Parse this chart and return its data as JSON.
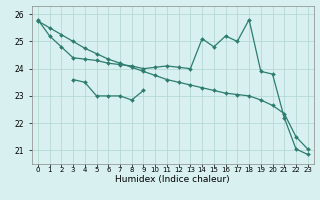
{
  "x_main": [
    0,
    1,
    2,
    3,
    4,
    5,
    6,
    7,
    8,
    9,
    10,
    11,
    12,
    13,
    14,
    15,
    16,
    17,
    18,
    19,
    20,
    21,
    22,
    23
  ],
  "y_zigzag": [
    25.8,
    25.2,
    24.8,
    24.4,
    24.35,
    24.3,
    24.2,
    24.15,
    24.1,
    24.0,
    24.05,
    24.1,
    24.05,
    24.0,
    25.1,
    24.8,
    25.2,
    25.0,
    25.8,
    23.9,
    23.8,
    22.2,
    21.05,
    20.85
  ],
  "x_trend": [
    0,
    1,
    2,
    3,
    4,
    5,
    6,
    7,
    8,
    9,
    10,
    11,
    12,
    13,
    14,
    15,
    16,
    17,
    18,
    19,
    20,
    21,
    22,
    23
  ],
  "y_trend": [
    25.75,
    25.5,
    25.25,
    25.0,
    24.75,
    24.55,
    24.35,
    24.2,
    24.05,
    23.9,
    23.75,
    23.6,
    23.5,
    23.4,
    23.3,
    23.2,
    23.1,
    23.05,
    23.0,
    22.85,
    22.65,
    22.35,
    21.5,
    21.05
  ],
  "x_cluster": [
    3,
    4,
    5,
    6,
    7,
    8,
    9
  ],
  "y_cluster": [
    23.6,
    23.5,
    23.0,
    23.0,
    23.0,
    22.85,
    23.2
  ],
  "ylim": [
    20.5,
    26.3
  ],
  "yticks": [
    21,
    22,
    23,
    24,
    25,
    26
  ],
  "xlim": [
    -0.5,
    23.5
  ],
  "xlabel": "Humidex (Indice chaleur)",
  "line_color": "#2d7d6e",
  "bg_color": "#d8f0f0",
  "grid_color": "#b0d4d0"
}
